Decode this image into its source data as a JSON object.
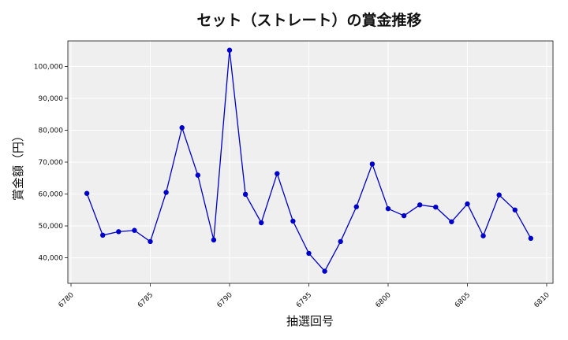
{
  "chart_data": {
    "type": "line",
    "title": "セット（ストレート）の賞金推移",
    "xlabel": "抽選回号",
    "ylabel": "賞金額（円）",
    "xlim": [
      6779.8,
      6810.4
    ],
    "ylim": [
      32000,
      108000
    ],
    "xticks": [
      6780,
      6785,
      6790,
      6795,
      6800,
      6805,
      6810
    ],
    "yticks": [
      40000,
      50000,
      60000,
      70000,
      80000,
      90000,
      100000
    ],
    "ytick_labels": [
      "40,000",
      "50,000",
      "60,000",
      "70,000",
      "80,000",
      "90,000",
      "100,000"
    ],
    "grid": true,
    "background_color": "#efefef",
    "line_color": "#0000cc",
    "series": [
      {
        "x": [
          6781,
          6782,
          6783,
          6784,
          6785,
          6786,
          6787,
          6788,
          6789,
          6790,
          6791,
          6792,
          6793,
          6794,
          6795,
          6796,
          6797,
          6798,
          6799,
          6800,
          6801,
          6802,
          6803,
          6804,
          6805,
          6806,
          6807,
          6808,
          6809
        ],
        "values": [
          60200,
          47100,
          48200,
          48600,
          45100,
          60500,
          80800,
          65900,
          45600,
          105100,
          59900,
          51000,
          66400,
          51500,
          41400,
          35800,
          45100,
          56000,
          69400,
          55400,
          53200,
          56600,
          55900,
          51300,
          56900,
          46900,
          59700,
          55000,
          46100
        ]
      }
    ]
  }
}
